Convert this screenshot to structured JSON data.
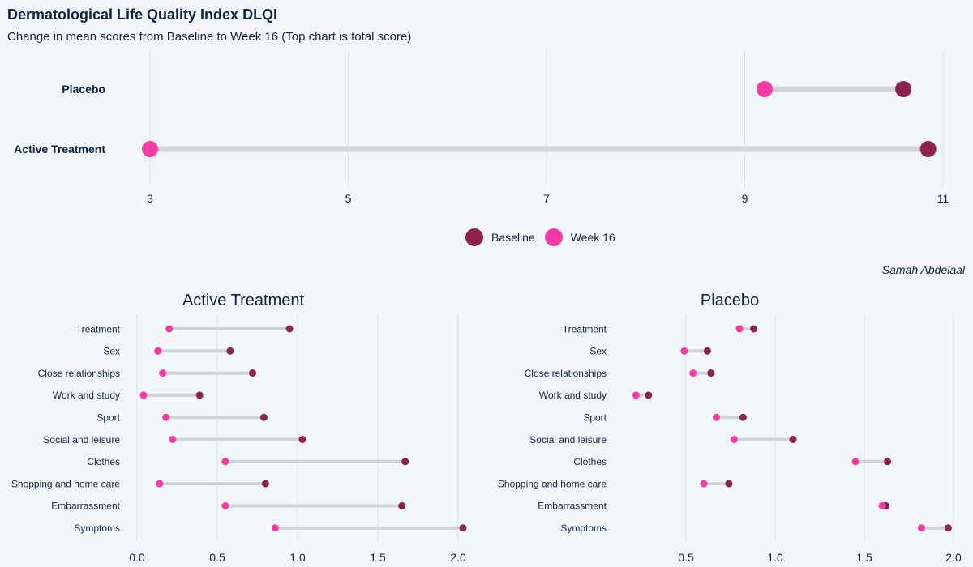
{
  "title": "Dermatological Life Quality Index DLQI",
  "subtitle": "Change in mean scores from Baseline to Week 16  (Top chart is total score)",
  "caption": "Samah Abdelaal",
  "colors": {
    "baseline": "#8b2252",
    "week16": "#f53aa8",
    "segment": "#d3d3d3",
    "grid": "#dde1e6",
    "text": "#0d2244"
  },
  "legend": {
    "baseline_label": "Baseline",
    "week16_label": "Week 16"
  },
  "chart_data": [
    {
      "type": "dumbbell",
      "title": "",
      "categories": [
        "Placebo",
        "Active Treatment"
      ],
      "series": [
        {
          "name": "Baseline",
          "values": [
            10.6,
            10.85
          ]
        },
        {
          "name": "Week 16",
          "values": [
            9.2,
            3.0
          ]
        }
      ],
      "xlim": [
        3,
        11
      ],
      "xticks": [
        3,
        5,
        7,
        9,
        11
      ],
      "grid": true,
      "legend": "bottom"
    },
    {
      "type": "dumbbell",
      "title": "Active Treatment",
      "categories": [
        "Treatment",
        "Sex",
        "Close relationships",
        "Work and study",
        "Sport",
        "Social and leisure",
        "Clothes",
        "Shopping and home care",
        "Embarrassment",
        "Symptoms"
      ],
      "series": [
        {
          "name": "Baseline",
          "values": [
            0.95,
            0.58,
            0.72,
            0.39,
            0.79,
            1.03,
            1.67,
            0.8,
            1.65,
            2.03
          ]
        },
        {
          "name": "Week 16",
          "values": [
            0.2,
            0.13,
            0.16,
            0.04,
            0.18,
            0.22,
            0.55,
            0.14,
            0.55,
            0.86
          ]
        }
      ],
      "xlim": [
        0,
        2.0
      ],
      "xticks": [
        "0.0",
        "0.5",
        "1.0",
        "1.5",
        "2.0"
      ],
      "grid": true
    },
    {
      "type": "dumbbell",
      "title": "Placebo",
      "categories": [
        "Treatment",
        "Sex",
        "Close relationships",
        "Work and study",
        "Sport",
        "Social and leisure",
        "Clothes",
        "Shopping and home care",
        "Embarrassment",
        "Symptoms"
      ],
      "series": [
        {
          "name": "Baseline",
          "values": [
            0.88,
            0.62,
            0.64,
            0.29,
            0.82,
            1.1,
            1.63,
            0.74,
            1.62,
            1.97
          ]
        },
        {
          "name": "Week 16",
          "values": [
            0.8,
            0.49,
            0.54,
            0.22,
            0.67,
            0.77,
            1.45,
            0.6,
            1.6,
            1.82
          ]
        }
      ],
      "xlim": [
        0.5,
        2.0
      ],
      "xticks": [
        "0.5",
        "1.0",
        "1.5",
        "2.0"
      ],
      "grid": true
    }
  ]
}
